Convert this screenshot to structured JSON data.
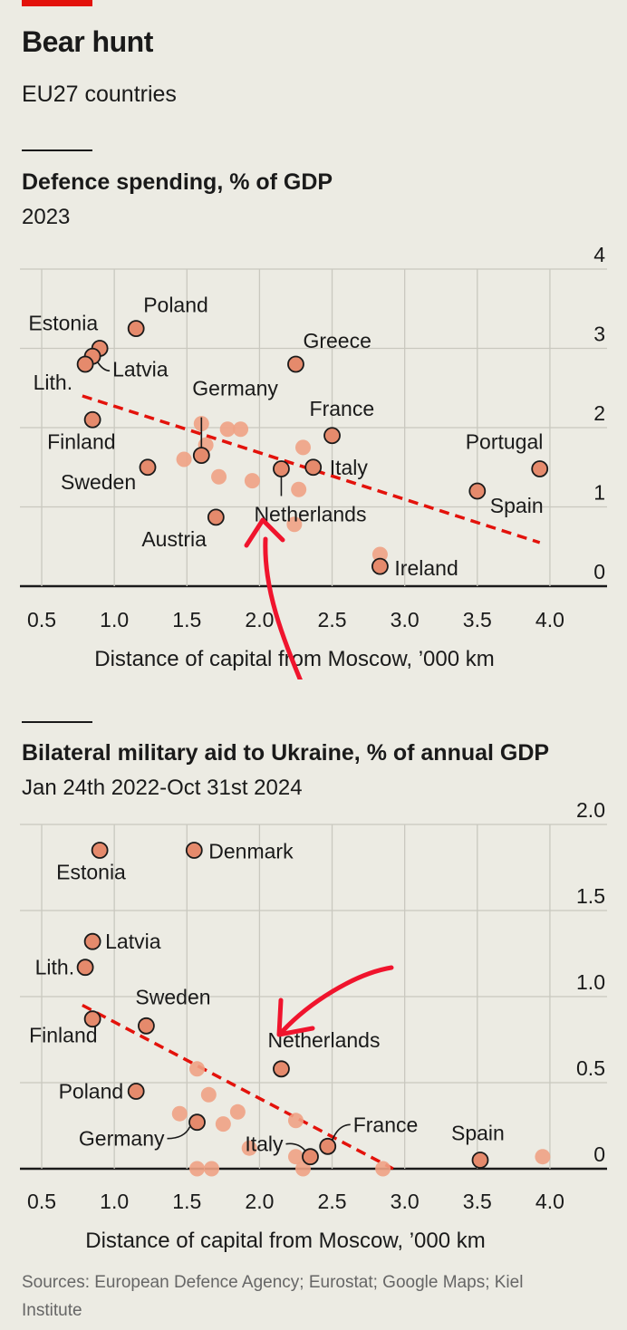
{
  "header": {
    "title": "Bear hunt",
    "subtitle": "EU27 countries"
  },
  "source": "Sources: European Defence Agency; Eurostat; Google Maps; Kiel Institute",
  "colors": {
    "labelled_point": "#e58a6c",
    "unlabelled_point": "#f0a284",
    "trend_line": "#e3120b",
    "annotation_arrow": "#f0142d"
  },
  "chart_data": [
    {
      "type": "scatter",
      "title": "Defence spending, % of GDP",
      "subtitle": "2023",
      "xlabel": "Distance of capital from Moscow, ’000 km",
      "ylabel": "",
      "xlim": [
        0.4,
        4.3
      ],
      "ylim": [
        0,
        4
      ],
      "xticks": [
        "0.5",
        "1.0",
        "1.5",
        "2.0",
        "2.5",
        "3.0",
        "3.5",
        "4.0"
      ],
      "yticks": [
        "0",
        "1",
        "2",
        "3",
        "4"
      ],
      "grid": "horizontal",
      "trend_line": {
        "x": [
          0.78,
          3.93
        ],
        "y": [
          2.4,
          0.55
        ]
      },
      "points": [
        {
          "label": "Estonia",
          "x": 0.9,
          "y": 3.0
        },
        {
          "label": "Poland",
          "x": 1.15,
          "y": 3.25
        },
        {
          "label": "Latvia",
          "x": 0.85,
          "y": 2.9
        },
        {
          "label": "Lith.",
          "x": 0.8,
          "y": 2.8
        },
        {
          "label": "Greece",
          "x": 2.25,
          "y": 2.8
        },
        {
          "label": "Germany",
          "x": 1.6,
          "y": 1.65
        },
        {
          "label": "France",
          "x": 2.5,
          "y": 1.9
        },
        {
          "label": "Finland",
          "x": 0.85,
          "y": 2.1
        },
        {
          "label": "Sweden",
          "x": 1.23,
          "y": 1.5
        },
        {
          "label": "Italy",
          "x": 2.37,
          "y": 1.5
        },
        {
          "label": "Netherlands",
          "x": 2.15,
          "y": 1.48
        },
        {
          "label": "Portugal",
          "x": 3.93,
          "y": 1.48
        },
        {
          "label": "Spain",
          "x": 3.5,
          "y": 1.2
        },
        {
          "label": "Austria",
          "x": 1.7,
          "y": 0.87
        },
        {
          "label": "Ireland",
          "x": 2.83,
          "y": 0.25
        },
        {
          "label": "",
          "x": 1.6,
          "y": 2.05
        },
        {
          "label": "",
          "x": 1.78,
          "y": 1.98
        },
        {
          "label": "",
          "x": 1.87,
          "y": 1.98
        },
        {
          "label": "",
          "x": 1.63,
          "y": 1.78
        },
        {
          "label": "",
          "x": 1.48,
          "y": 1.6
        },
        {
          "label": "",
          "x": 1.72,
          "y": 1.38
        },
        {
          "label": "",
          "x": 1.95,
          "y": 1.33
        },
        {
          "label": "",
          "x": 2.3,
          "y": 1.75
        },
        {
          "label": "",
          "x": 2.27,
          "y": 1.22
        },
        {
          "label": "",
          "x": 2.24,
          "y": 0.78
        },
        {
          "label": "",
          "x": 2.83,
          "y": 0.4
        }
      ]
    },
    {
      "type": "scatter",
      "title": "Bilateral military aid to Ukraine, % of annual GDP",
      "subtitle": "Jan 24th 2022-Oct 31st 2024",
      "xlabel": "Distance of capital from Moscow, ’000 km",
      "ylabel": "",
      "xlim": [
        0.4,
        4.3
      ],
      "ylim": [
        0,
        2.0
      ],
      "xticks": [
        "0.5",
        "1.0",
        "1.5",
        "2.0",
        "2.5",
        "3.0",
        "3.5",
        "4.0"
      ],
      "yticks": [
        "0",
        "0.5",
        "1.0",
        "1.5",
        "2.0"
      ],
      "grid": "horizontal",
      "trend_line": {
        "x": [
          0.78,
          2.92
        ],
        "y": [
          0.95,
          0.0
        ]
      },
      "points": [
        {
          "label": "Estonia",
          "x": 0.9,
          "y": 1.85
        },
        {
          "label": "Denmark",
          "x": 1.55,
          "y": 1.85
        },
        {
          "label": "Latvia",
          "x": 0.85,
          "y": 1.32
        },
        {
          "label": "Lith.",
          "x": 0.8,
          "y": 1.17
        },
        {
          "label": "Sweden",
          "x": 1.22,
          "y": 0.83
        },
        {
          "label": "Finland",
          "x": 0.85,
          "y": 0.87
        },
        {
          "label": "Netherlands",
          "x": 2.15,
          "y": 0.58
        },
        {
          "label": "Poland",
          "x": 1.15,
          "y": 0.45
        },
        {
          "label": "Germany",
          "x": 1.57,
          "y": 0.27
        },
        {
          "label": "Italy",
          "x": 2.35,
          "y": 0.07
        },
        {
          "label": "France",
          "x": 2.47,
          "y": 0.13
        },
        {
          "label": "Spain",
          "x": 3.52,
          "y": 0.05
        },
        {
          "label": "",
          "x": 3.95,
          "y": 0.07
        },
        {
          "label": "",
          "x": 1.57,
          "y": 0.58
        },
        {
          "label": "",
          "x": 1.65,
          "y": 0.43
        },
        {
          "label": "",
          "x": 1.45,
          "y": 0.32
        },
        {
          "label": "",
          "x": 1.75,
          "y": 0.26
        },
        {
          "label": "",
          "x": 1.85,
          "y": 0.33
        },
        {
          "label": "",
          "x": 1.93,
          "y": 0.12
        },
        {
          "label": "",
          "x": 2.25,
          "y": 0.28
        },
        {
          "label": "",
          "x": 2.25,
          "y": 0.07
        },
        {
          "label": "",
          "x": 2.3,
          "y": 0.0
        },
        {
          "label": "",
          "x": 1.57,
          "y": 0.0
        },
        {
          "label": "",
          "x": 1.67,
          "y": 0.0
        },
        {
          "label": "",
          "x": 2.85,
          "y": 0.0
        }
      ]
    }
  ]
}
